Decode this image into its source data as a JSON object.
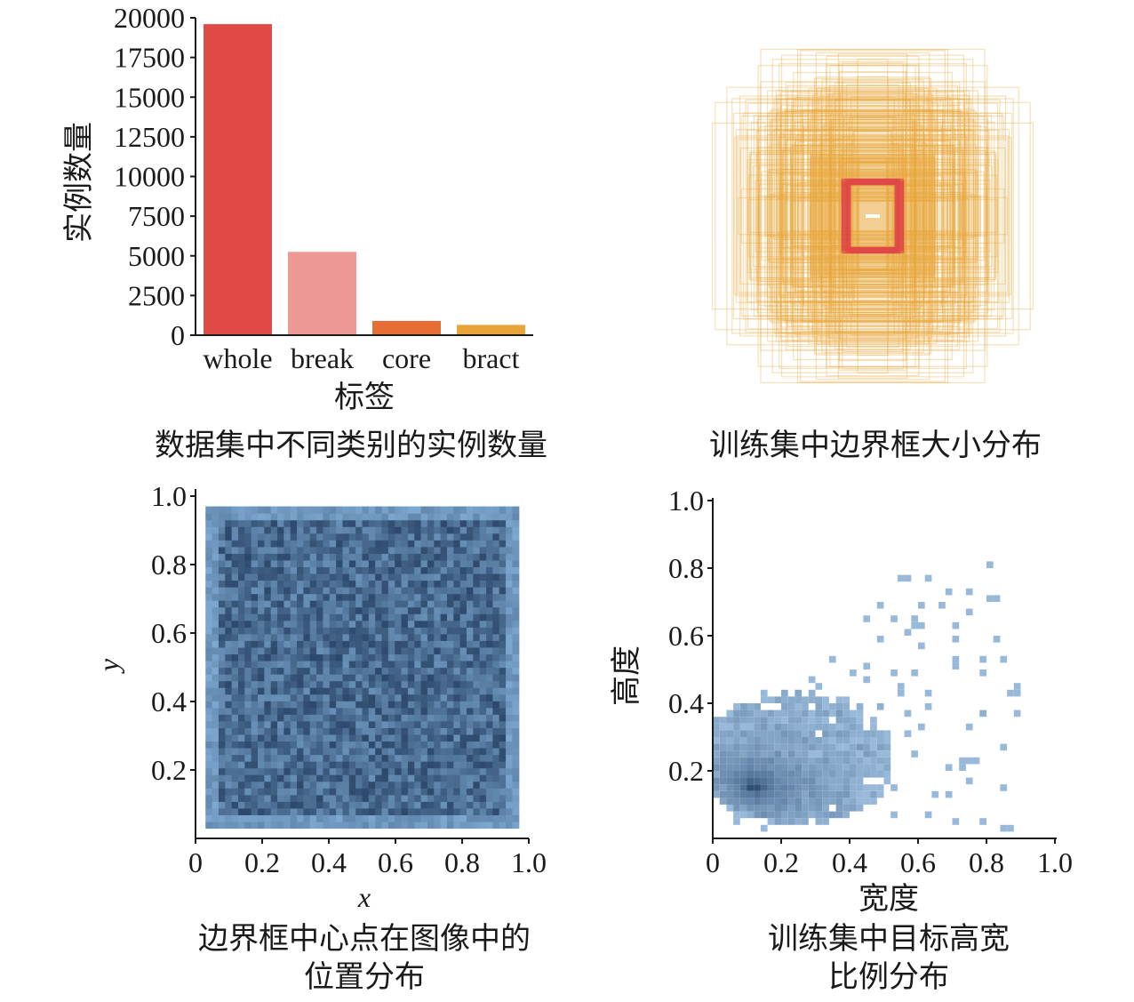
{
  "colors": {
    "whole": "#e04a46",
    "break": "#ee9895",
    "core": "#e66d34",
    "bract": "#e8a43a",
    "box_orange": "#e8a63a",
    "box_red": "#e04a46",
    "heat_dark": "#213b5e",
    "heat_light": "#8fbde6",
    "hist_light": "#a8c9e8",
    "hist_dark": "#2f4f77"
  },
  "captions": {
    "bar": "数据集中不同类别的实例数量",
    "boxes": "训练集中边界框大小分布",
    "centers_line1": "边界框中心点在图像中的",
    "centers_line2": "位置分布",
    "ratio_line1": "训练集中目标高宽",
    "ratio_line2": "比例分布"
  },
  "chart_data": [
    {
      "type": "bar",
      "categories": [
        "whole",
        "break",
        "core",
        "bract"
      ],
      "values": [
        19600,
        5250,
        900,
        650
      ],
      "xlabel": "标签",
      "ylabel": "实例数量",
      "ylim": [
        0,
        20000
      ],
      "yticks": [
        "0",
        "2500",
        "5000",
        "7500",
        "10000",
        "12500",
        "15000",
        "17500",
        "20000"
      ]
    },
    {
      "type": "scatter",
      "description_free": true,
      "xlabel": "",
      "ylabel": ""
    },
    {
      "type": "heatmap",
      "xlabel": "x",
      "ylabel": "y",
      "xlim": [
        0,
        1.0
      ],
      "ylim": [
        0,
        1.0
      ],
      "xticks": [
        "0",
        "0.2",
        "0.4",
        "0.6",
        "0.8",
        "1.0"
      ],
      "yticks": [
        "0.2",
        "0.4",
        "0.6",
        "0.8",
        "1.0"
      ],
      "x_extent": [
        0.03,
        0.97
      ],
      "y_extent": [
        0.03,
        0.97
      ]
    },
    {
      "type": "heatmap",
      "xlabel": "宽度",
      "ylabel": "高度",
      "xlim": [
        0,
        1.0
      ],
      "ylim": [
        0,
        1.0
      ],
      "xticks": [
        "0",
        "0.2",
        "0.4",
        "0.6",
        "0.8",
        "1.0"
      ],
      "yticks": [
        "0.2",
        "0.4",
        "0.6",
        "0.8",
        "1.0"
      ],
      "peak": [
        0.12,
        0.15
      ]
    }
  ]
}
